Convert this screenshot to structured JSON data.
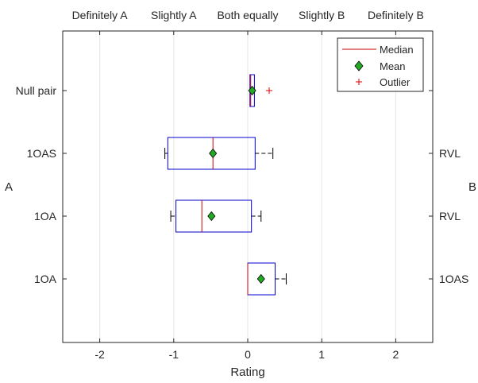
{
  "chart_data": {
    "type": "boxplot",
    "orientation": "horizontal",
    "xlabel": "Rating",
    "xlim": [
      -2.5,
      2.5
    ],
    "x_ticks": [
      -2,
      -1,
      0,
      1,
      2
    ],
    "top_tick_labels": [
      "Definitely A",
      "Slightly A",
      "Both equally",
      "Slightly B",
      "Definitely B"
    ],
    "left_axis_label": "A",
    "right_axis_label": "B",
    "grid": "vertical",
    "legend_position": "top-right",
    "legend": [
      {
        "label": "Median",
        "marker": "line",
        "color": "#cc0000"
      },
      {
        "label": "Mean",
        "marker": "diamond",
        "color": "#2ca02c"
      },
      {
        "label": "Outlier",
        "marker": "plus",
        "color": "#cc0000"
      }
    ],
    "colors": {
      "box": "#0000cc",
      "median": "#cc0000",
      "mean": "#22aa22",
      "outlier": "#dd0000",
      "whisker": "#000000"
    },
    "pairs": [
      {
        "a": "Null pair",
        "b": "",
        "whisker_low": 0.03,
        "q1": 0.03,
        "median": 0.04,
        "q3": 0.09,
        "whisker_high": 0.09,
        "mean": 0.06,
        "outliers": [
          0.29
        ]
      },
      {
        "a": "1OAS",
        "b": "RVL",
        "whisker_low": -1.12,
        "q1": -1.08,
        "median": -0.47,
        "q3": 0.1,
        "whisker_high": 0.34,
        "mean": -0.47,
        "outliers": []
      },
      {
        "a": "1OA",
        "b": "RVL",
        "whisker_low": -1.04,
        "q1": -0.97,
        "median": -0.62,
        "q3": 0.05,
        "whisker_high": 0.18,
        "mean": -0.49,
        "outliers": []
      },
      {
        "a": "1OA",
        "b": "1OAS",
        "whisker_low": 0.0,
        "q1": 0.0,
        "median": 0.0,
        "q3": 0.37,
        "whisker_high": 0.52,
        "mean": 0.18,
        "outliers": []
      }
    ]
  }
}
